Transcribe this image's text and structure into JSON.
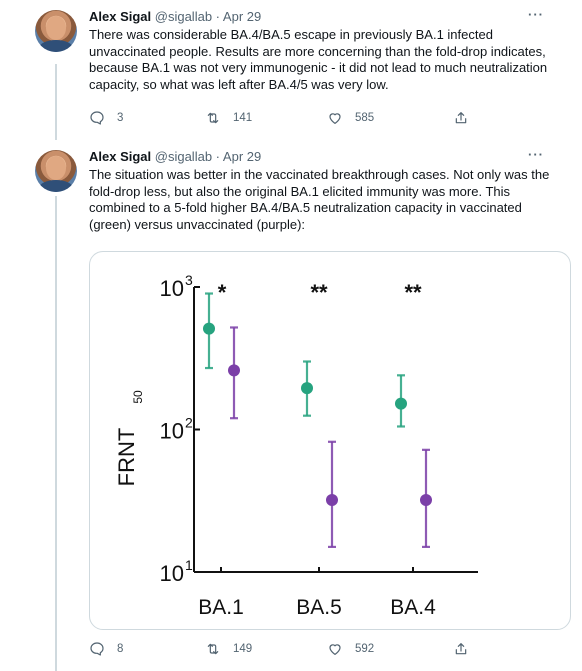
{
  "tweets": [
    {
      "author_name": "Alex Sigal",
      "handle": "@sigallab",
      "separator": "·",
      "date": "Apr 29",
      "more": "···",
      "text": "There was considerable BA.4/BA.5 escape in previously BA.1 infected unvaccinated people. Results are more concerning than the fold-drop indicates, because BA.1 was not very immunogenic - it did not lead to much neutralization capacity, so what was left after BA.4/5 was very low.",
      "replies": "3",
      "retweets": "141",
      "likes": "585"
    },
    {
      "author_name": "Alex Sigal",
      "handle": "@sigallab",
      "separator": "·",
      "date": "Apr 29",
      "more": "···",
      "text": "The situation was better in the vaccinated breakthrough cases. Not only was the fold-drop less, but also the original BA.1 elicited immunity was more. This combined to a 5-fold higher BA.4/BA.5 neutralization capacity in vaccinated (green) versus unvaccinated (purple):",
      "replies": "8",
      "retweets": "149",
      "likes": "592"
    }
  ],
  "colors": {
    "vaccinated": "#26a37f",
    "unvaccinated": "#7b3fa8",
    "text_secondary": "#536471"
  },
  "chart_data": {
    "type": "scatter",
    "y_scale": "log",
    "ylim": [
      10,
      1000
    ],
    "ylabel_main": "FRNT",
    "ylabel_sub": "50",
    "yticks": [
      {
        "base": "10",
        "exp": "1",
        "value": 10
      },
      {
        "base": "10",
        "exp": "2",
        "value": 100
      },
      {
        "base": "10",
        "exp": "3",
        "value": 1000
      }
    ],
    "categories": [
      "BA.1",
      "BA.5",
      "BA.4"
    ],
    "significance": [
      "*",
      "**",
      "**"
    ],
    "series": [
      {
        "color_key": "vaccinated",
        "points": [
          {
            "category": "BA.1",
            "y": 510,
            "low": 270,
            "high": 900
          },
          {
            "category": "BA.5",
            "y": 195,
            "low": 125,
            "high": 300
          },
          {
            "category": "BA.4",
            "y": 152,
            "low": 105,
            "high": 240
          }
        ]
      },
      {
        "color_key": "unvaccinated",
        "points": [
          {
            "category": "BA.1",
            "y": 260,
            "low": 120,
            "high": 520
          },
          {
            "category": "BA.5",
            "y": 32,
            "low": 15,
            "high": 82
          },
          {
            "category": "BA.4",
            "y": 32,
            "low": 15,
            "high": 72
          }
        ]
      }
    ]
  }
}
